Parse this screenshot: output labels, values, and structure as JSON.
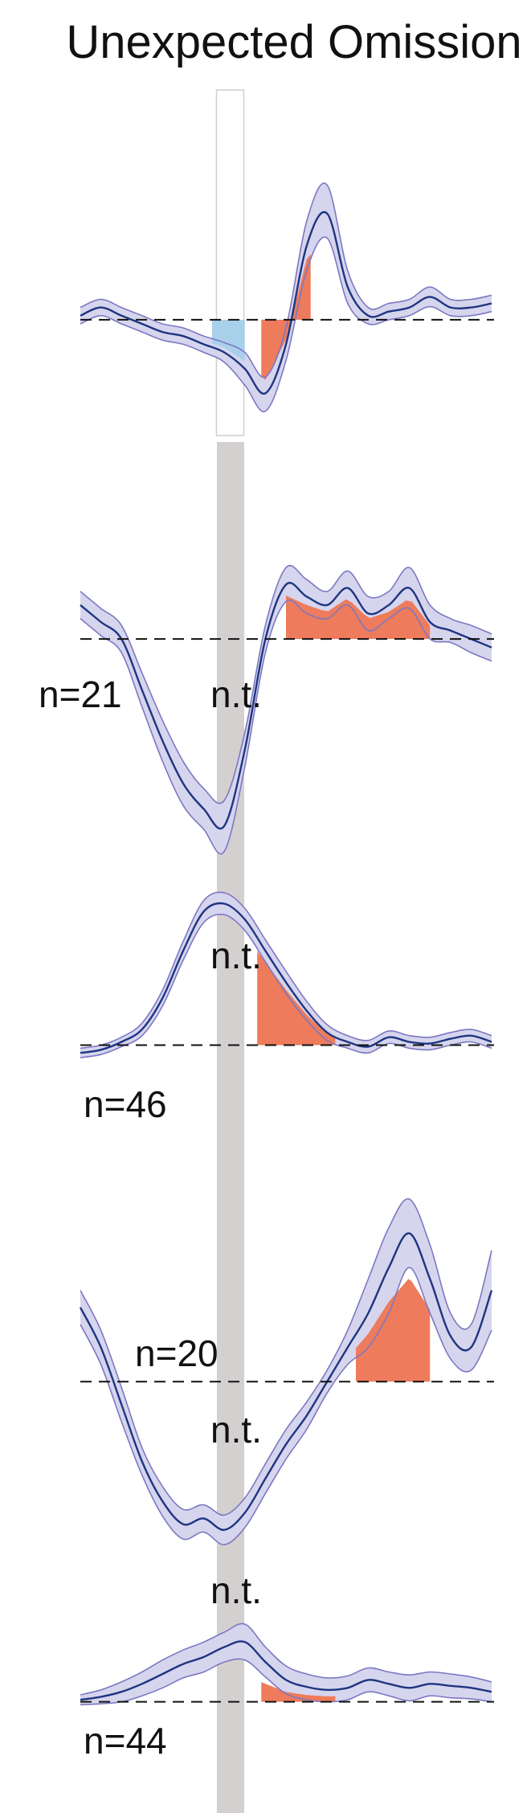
{
  "title": "Unexpected Omission",
  "colors": {
    "band_fill": "#d6d5ee",
    "band_edge": "#7c78c2",
    "mean_line": "#1e3580",
    "positive_area": "#ee7b5b",
    "negative_area": "#a9d0ea",
    "stimulus_bar": "#d4d0d0",
    "baseline": "#111111"
  },
  "chart_data": {
    "type": "line",
    "panels": [
      {
        "id": "p1",
        "baseline": 0,
        "ylim": [
          -1.3,
          1.75
        ],
        "x": [
          0,
          0.05,
          0.1,
          0.15,
          0.2,
          0.25,
          0.3,
          0.35,
          0.4,
          0.45,
          0.5,
          0.55,
          0.6,
          0.65,
          0.7,
          0.75,
          0.8,
          0.85,
          0.9,
          0.95,
          1.0
        ],
        "mean": [
          0.05,
          0.15,
          0.05,
          -0.05,
          -0.15,
          -0.2,
          -0.3,
          -0.4,
          -0.6,
          -0.9,
          -0.3,
          0.9,
          1.3,
          0.4,
          0.05,
          0.1,
          0.15,
          0.28,
          0.15,
          0.15,
          0.2
        ],
        "upper": [
          0.15,
          0.25,
          0.15,
          0.05,
          -0.05,
          -0.1,
          -0.2,
          -0.28,
          -0.4,
          -0.7,
          -0.1,
          1.2,
          1.65,
          0.6,
          0.15,
          0.2,
          0.25,
          0.4,
          0.25,
          0.25,
          0.3
        ],
        "lower": [
          -0.05,
          0.05,
          -0.05,
          -0.15,
          -0.25,
          -0.3,
          -0.4,
          -0.52,
          -0.8,
          -1.12,
          -0.5,
          0.6,
          1.0,
          0.2,
          -0.05,
          0.0,
          0.05,
          0.16,
          0.05,
          0.05,
          0.1
        ],
        "bar_x": [
          0.33,
          0.4
        ],
        "box": true,
        "neg_area": {
          "x": [
            0.32,
            0.4
          ]
        },
        "pos_area": {
          "x": [
            0.44,
            0.56
          ],
          "scale": 0.82
        },
        "labels": []
      },
      {
        "id": "p2",
        "baseline": 0,
        "ylim": [
          -1.3,
          0.45
        ],
        "x": [
          0,
          0.05,
          0.1,
          0.15,
          0.2,
          0.25,
          0.3,
          0.35,
          0.4,
          0.45,
          0.5,
          0.55,
          0.6,
          0.65,
          0.7,
          0.75,
          0.8,
          0.85,
          0.9,
          0.95,
          1.0
        ],
        "mean": [
          0.2,
          0.1,
          0.0,
          -0.3,
          -0.6,
          -0.85,
          -1.0,
          -1.1,
          -0.65,
          0.0,
          0.32,
          0.25,
          0.2,
          0.3,
          0.15,
          0.2,
          0.3,
          0.1,
          0.05,
          0.0,
          -0.05
        ],
        "upper": [
          0.28,
          0.18,
          0.08,
          -0.2,
          -0.48,
          -0.72,
          -0.88,
          -0.95,
          -0.55,
          0.08,
          0.42,
          0.35,
          0.28,
          0.4,
          0.25,
          0.28,
          0.42,
          0.2,
          0.12,
          0.08,
          0.03
        ],
        "lower": [
          0.12,
          0.02,
          -0.08,
          -0.4,
          -0.72,
          -0.98,
          -1.12,
          -1.25,
          -0.75,
          -0.08,
          0.22,
          0.15,
          0.12,
          0.2,
          0.05,
          0.12,
          0.18,
          0.0,
          -0.02,
          -0.08,
          -0.13
        ],
        "bar_x": [
          0.33,
          0.4
        ],
        "box": false,
        "pos_area": {
          "x": [
            0.5,
            0.85
          ],
          "scale": 0.8
        },
        "labels": [
          {
            "text": "n=21",
            "pos": "left"
          },
          {
            "text": "n.t.",
            "pos": "bar"
          }
        ]
      },
      {
        "id": "p3",
        "baseline": 0,
        "ylim": [
          -0.1,
          1.0
        ],
        "x": [
          0,
          0.05,
          0.1,
          0.15,
          0.2,
          0.25,
          0.3,
          0.35,
          0.4,
          0.45,
          0.5,
          0.55,
          0.6,
          0.65,
          0.7,
          0.75,
          0.8,
          0.85,
          0.9,
          0.95,
          1.0
        ],
        "mean": [
          -0.05,
          -0.03,
          0.02,
          0.1,
          0.3,
          0.6,
          0.85,
          0.9,
          0.8,
          0.6,
          0.4,
          0.22,
          0.08,
          0.02,
          -0.01,
          0.05,
          0.02,
          0.01,
          0.04,
          0.06,
          0.02
        ],
        "upper": [
          -0.02,
          0.0,
          0.05,
          0.14,
          0.35,
          0.66,
          0.92,
          0.97,
          0.87,
          0.67,
          0.47,
          0.28,
          0.13,
          0.06,
          0.03,
          0.09,
          0.06,
          0.05,
          0.08,
          0.1,
          0.06
        ],
        "lower": [
          -0.08,
          -0.06,
          -0.01,
          0.06,
          0.25,
          0.54,
          0.78,
          0.83,
          0.73,
          0.53,
          0.33,
          0.16,
          0.03,
          -0.02,
          -0.05,
          0.01,
          -0.02,
          -0.03,
          0.0,
          0.02,
          -0.02
        ],
        "bar_x": [
          0.33,
          0.4
        ],
        "box": false,
        "pos_area": {
          "x": [
            0.43,
            0.62
          ],
          "scale": 0.88
        },
        "labels": [
          {
            "text": "n.t.",
            "pos": "bar"
          },
          {
            "text": "n=46",
            "pos": "below"
          }
        ]
      },
      {
        "id": "p4",
        "baseline": 0,
        "ylim": [
          -1.45,
          1.65
        ],
        "x": [
          0,
          0.05,
          0.1,
          0.15,
          0.2,
          0.25,
          0.3,
          0.35,
          0.4,
          0.45,
          0.5,
          0.55,
          0.6,
          0.65,
          0.7,
          0.75,
          0.8,
          0.85,
          0.9,
          0.95,
          1.0
        ],
        "mean": [
          0.65,
          0.3,
          -0.2,
          -0.7,
          -1.05,
          -1.25,
          -1.2,
          -1.3,
          -1.15,
          -0.85,
          -0.55,
          -0.3,
          0.0,
          0.3,
          0.6,
          1.0,
          1.3,
          0.9,
          0.4,
          0.3,
          0.8
        ],
        "upper": [
          0.8,
          0.45,
          -0.05,
          -0.58,
          -0.92,
          -1.12,
          -1.08,
          -1.17,
          -1.02,
          -0.72,
          -0.42,
          -0.18,
          0.1,
          0.45,
          0.9,
          1.35,
          1.6,
          1.2,
          0.6,
          0.5,
          1.15
        ],
        "lower": [
          0.5,
          0.15,
          -0.35,
          -0.82,
          -1.18,
          -1.38,
          -1.32,
          -1.43,
          -1.28,
          -0.98,
          -0.68,
          -0.42,
          -0.1,
          0.15,
          0.3,
          0.6,
          1.0,
          0.6,
          0.2,
          0.1,
          0.45
        ],
        "bar_x": [
          0.33,
          0.4
        ],
        "box": false,
        "pos_area": {
          "x": [
            0.67,
            0.85
          ],
          "scale": 0.7
        },
        "labels": [
          {
            "text": "n=20",
            "pos": "above-baseline"
          },
          {
            "text": "n.t.",
            "pos": "bar"
          }
        ]
      },
      {
        "id": "p5",
        "baseline": 0,
        "ylim": [
          -0.1,
          0.95
        ],
        "x": [
          0,
          0.05,
          0.1,
          0.15,
          0.2,
          0.25,
          0.3,
          0.35,
          0.4,
          0.45,
          0.5,
          0.55,
          0.6,
          0.65,
          0.7,
          0.75,
          0.8,
          0.85,
          0.9,
          0.95,
          1.0
        ],
        "mean": [
          0.02,
          0.05,
          0.1,
          0.18,
          0.28,
          0.38,
          0.45,
          0.55,
          0.6,
          0.4,
          0.22,
          0.15,
          0.12,
          0.14,
          0.22,
          0.18,
          0.14,
          0.18,
          0.16,
          0.14,
          0.1
        ],
        "upper": [
          0.07,
          0.12,
          0.2,
          0.3,
          0.42,
          0.52,
          0.6,
          0.7,
          0.78,
          0.55,
          0.36,
          0.28,
          0.24,
          0.26,
          0.34,
          0.3,
          0.27,
          0.3,
          0.28,
          0.25,
          0.2
        ],
        "lower": [
          -0.03,
          -0.02,
          0.0,
          0.06,
          0.14,
          0.24,
          0.3,
          0.4,
          0.42,
          0.25,
          0.08,
          0.02,
          0.0,
          0.02,
          0.1,
          0.06,
          0.01,
          0.06,
          0.04,
          0.03,
          0.0
        ],
        "bar_x": [
          0.33,
          0.4
        ],
        "box": false,
        "pos_area": {
          "x": [
            0.44,
            0.62
          ],
          "scale": 0.45
        },
        "labels": [
          {
            "text": "n.t.",
            "pos": "bar"
          },
          {
            "text": "n=44",
            "pos": "below"
          }
        ]
      }
    ]
  }
}
